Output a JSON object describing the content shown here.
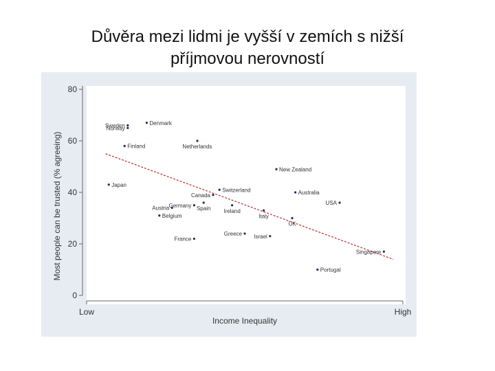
{
  "slide": {
    "title_line1": "Důvěra mezi lidmi je vyšší v zemích s nižší",
    "title_line2": "příjmovou nerovností"
  },
  "chart_data": {
    "type": "scatter",
    "xlabel": "Income Inequality",
    "ylabel": "Most people can be trusted (% agreeing)",
    "x_tick_labels": [
      "Low",
      "High"
    ],
    "y_ticks": [
      0,
      20,
      40,
      60,
      80
    ],
    "ylim": [
      0,
      80
    ],
    "grid": false,
    "colors": {
      "point": "#1f2d5c",
      "trend_line": "#b03030",
      "panel_bg": "#e7ecf2",
      "plot_bg": "#ffffff"
    },
    "trend_line": {
      "x": [
        0.06,
        0.97
      ],
      "y": [
        55,
        14
      ]
    },
    "points": [
      {
        "label": "Sweden",
        "x": 0.13,
        "y": 66
      },
      {
        "label": "Denmark",
        "x": 0.19,
        "y": 67
      },
      {
        "label": "Norway",
        "x": 0.13,
        "y": 65
      },
      {
        "label": "Finland",
        "x": 0.12,
        "y": 58
      },
      {
        "label": "Netherlands",
        "x": 0.35,
        "y": 60
      },
      {
        "label": "New Zealand",
        "x": 0.6,
        "y": 49
      },
      {
        "label": "Japan",
        "x": 0.07,
        "y": 43
      },
      {
        "label": "Switzerland",
        "x": 0.42,
        "y": 41
      },
      {
        "label": "Australia",
        "x": 0.66,
        "y": 40
      },
      {
        "label": "Canada",
        "x": 0.4,
        "y": 39
      },
      {
        "label": "Germany",
        "x": 0.34,
        "y": 35
      },
      {
        "label": "Spain",
        "x": 0.37,
        "y": 36
      },
      {
        "label": "Ireland",
        "x": 0.46,
        "y": 35
      },
      {
        "label": "USA",
        "x": 0.8,
        "y": 36
      },
      {
        "label": "Austria",
        "x": 0.27,
        "y": 34
      },
      {
        "label": "Belgium",
        "x": 0.23,
        "y": 31
      },
      {
        "label": "Italy",
        "x": 0.56,
        "y": 33
      },
      {
        "label": "UK",
        "x": 0.65,
        "y": 30
      },
      {
        "label": "Greece",
        "x": 0.5,
        "y": 24
      },
      {
        "label": "Israel",
        "x": 0.58,
        "y": 23
      },
      {
        "label": "France",
        "x": 0.34,
        "y": 22
      },
      {
        "label": "Singapore",
        "x": 0.94,
        "y": 17
      },
      {
        "label": "Portugal",
        "x": 0.73,
        "y": 10
      }
    ]
  }
}
